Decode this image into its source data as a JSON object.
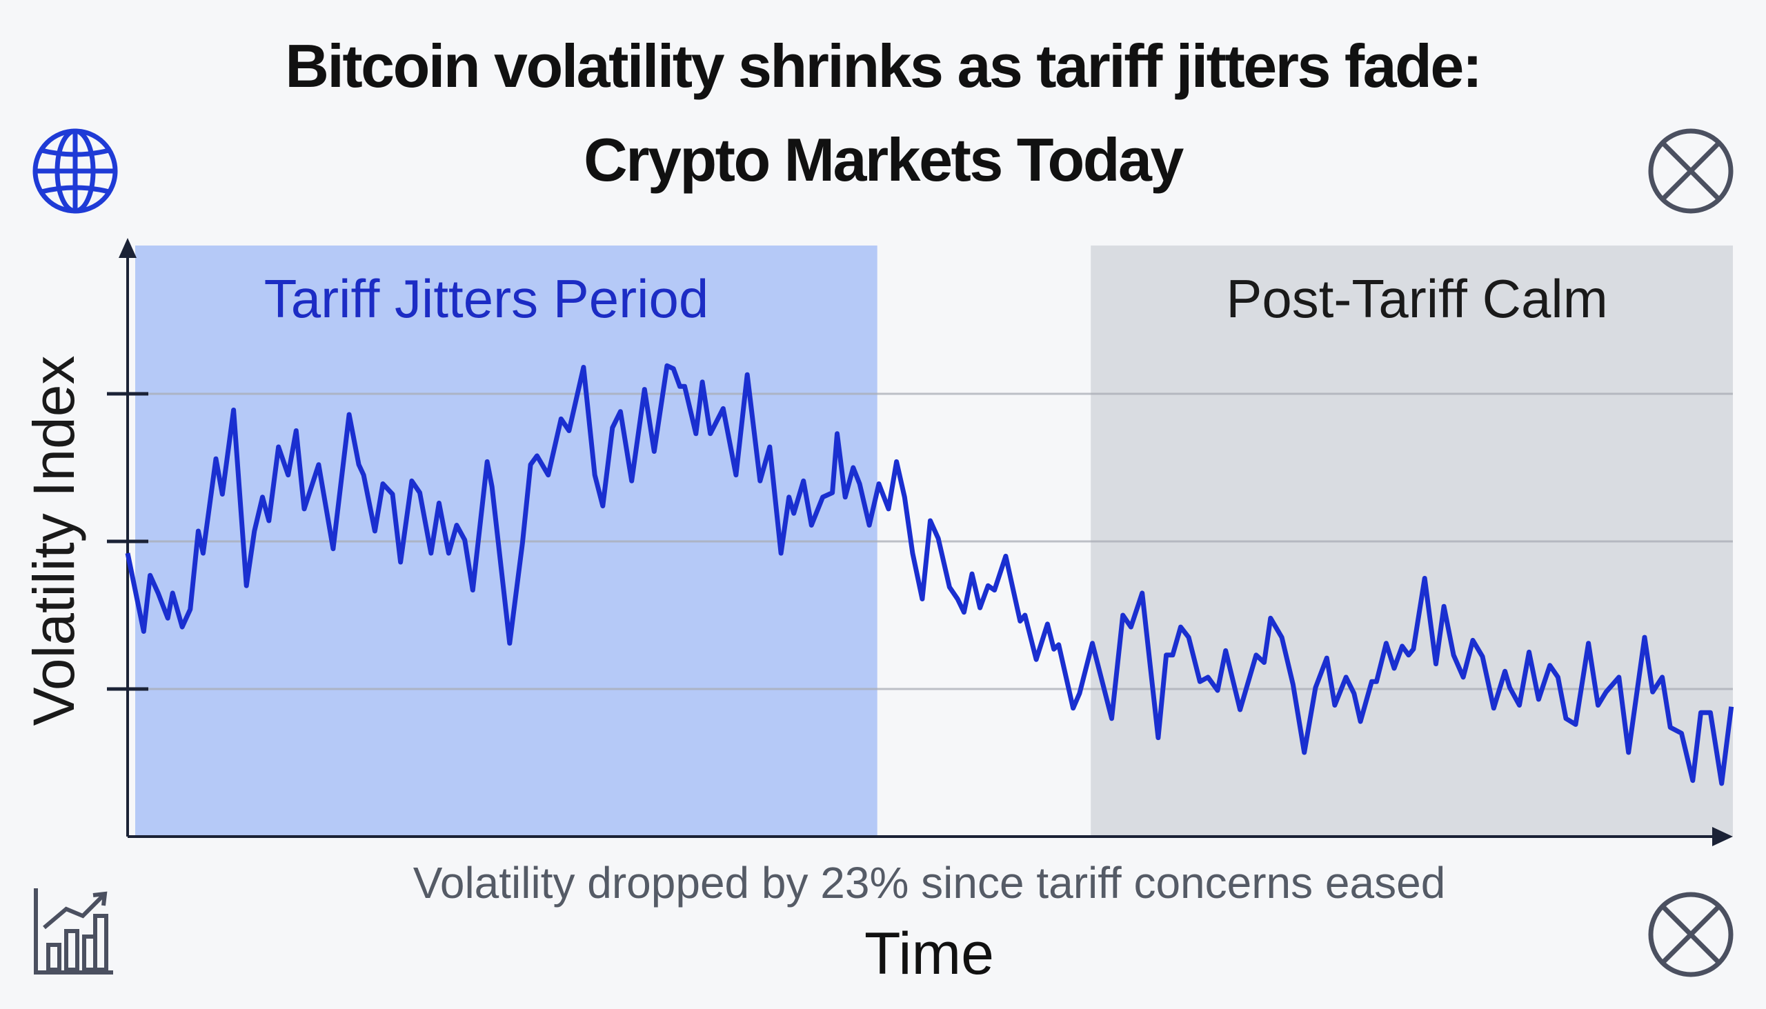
{
  "title": {
    "line1": "Bitcoin volatility shrinks as tariff jitters fade:",
    "line2": "Crypto Markets Today"
  },
  "icons": {
    "top_left": "globe-icon",
    "top_right": "close-circle-icon",
    "bottom_left": "bar-chart-trend-icon",
    "bottom_right": "close-circle-icon"
  },
  "chart_data": {
    "type": "line",
    "xlabel": "Time",
    "ylabel": "Volatility Index",
    "annotation": "Volatility dropped by 23% since tariff concerns eased",
    "grid": "horizontal",
    "xlim": [
      0,
      100
    ],
    "ylim": [
      0,
      4
    ],
    "yticks": [
      1,
      2,
      3
    ],
    "regions": [
      {
        "label": "Tariff Jitters Period",
        "x": [
          0,
          46.7
        ],
        "color": "#b5c9f7",
        "label_color": "#1c2cc4"
      },
      {
        "label": "Post-Tariff Calm",
        "x": [
          60.0,
          100
        ],
        "color": "#d9dce1",
        "label_color": "#1a1a1a"
      }
    ],
    "series": [
      {
        "color": "#1a2fd0",
        "x": [
          0,
          1.0,
          1.4,
          1.9,
          2.5,
          2.8,
          3.4,
          3.9,
          4.4,
          4.7,
          5.5,
          5.9,
          6.6,
          7.4,
          7.9,
          8.4,
          8.8,
          9.4,
          10.0,
          10.5,
          11.0,
          11.9,
          12.8,
          13.8,
          14.4,
          14.7,
          15.4,
          15.9,
          16.5,
          17.0,
          17.7,
          18.2,
          18.9,
          19.4,
          20.0,
          20.5,
          21.0,
          21.5,
          22.4,
          22.7,
          23.8,
          24.6,
          25.1,
          25.5,
          26.2,
          27.0,
          27.5,
          28.4,
          29.1,
          29.6,
          30.2,
          30.7,
          31.4,
          32.2,
          32.8,
          33.6,
          34.0,
          34.4,
          34.7,
          35.4,
          35.8,
          36.3,
          37.1,
          37.9,
          38.6,
          39.4,
          40.0,
          40.7,
          41.2,
          41.5,
          42.1,
          42.6,
          43.3,
          43.9,
          44.2,
          44.7,
          45.2,
          45.6,
          46.2,
          46.8,
          47.4,
          47.9,
          48.4,
          48.9,
          49.5,
          50.0,
          50.5,
          51.2,
          51.7,
          52.1,
          52.6,
          53.1,
          53.6,
          54.0,
          54.7,
          55.6,
          55.9,
          56.6,
          57.3,
          57.7,
          58.0,
          58.9,
          59.3,
          60.1,
          61.3,
          62.0,
          62.5,
          63.2,
          64.2,
          64.7,
          65.1,
          65.6,
          66.1,
          66.8,
          67.3,
          67.9,
          68.4,
          69.3,
          70.3,
          70.8,
          71.2,
          71.9,
          72.6,
          73.3,
          74.0,
          74.7,
          75.2,
          75.9,
          76.4,
          76.8,
          77.5,
          77.8,
          78.4,
          78.9,
          79.4,
          79.8,
          80.1,
          80.8,
          81.5,
          82.0,
          82.6,
          83.2,
          83.8,
          84.4,
          85.1,
          85.8,
          86.1,
          86.7,
          87.3,
          87.9,
          88.6,
          89.1,
          89.6,
          90.2,
          91.0,
          91.6,
          92.1,
          92.9,
          93.5,
          94.5,
          95.0,
          95.6,
          96.1,
          96.8,
          97.5,
          98.0,
          98.6,
          99.3,
          99.9
        ],
        "y": [
          1.92,
          1.39,
          1.77,
          1.65,
          1.48,
          1.65,
          1.42,
          1.54,
          2.07,
          1.92,
          2.56,
          2.32,
          2.89,
          1.7,
          2.07,
          2.3,
          2.14,
          2.64,
          2.45,
          2.75,
          2.22,
          2.52,
          1.95,
          2.86,
          2.52,
          2.45,
          2.07,
          2.39,
          2.32,
          1.86,
          2.41,
          2.33,
          1.92,
          2.26,
          1.92,
          2.11,
          2.01,
          1.67,
          2.54,
          2.37,
          1.31,
          1.99,
          2.52,
          2.58,
          2.45,
          2.83,
          2.75,
          3.18,
          2.45,
          2.24,
          2.77,
          2.88,
          2.41,
          3.03,
          2.61,
          3.19,
          3.17,
          3.05,
          3.05,
          2.73,
          3.08,
          2.73,
          2.9,
          2.45,
          3.13,
          2.41,
          2.64,
          1.92,
          2.3,
          2.19,
          2.41,
          2.11,
          2.3,
          2.33,
          2.73,
          2.3,
          2.5,
          2.39,
          2.11,
          2.39,
          2.22,
          2.54,
          2.3,
          1.92,
          1.61,
          2.14,
          2.02,
          1.69,
          1.61,
          1.52,
          1.78,
          1.55,
          1.7,
          1.67,
          1.9,
          1.46,
          1.5,
          1.2,
          1.44,
          1.27,
          1.3,
          0.87,
          0.97,
          1.31,
          0.8,
          1.5,
          1.42,
          1.65,
          0.67,
          1.23,
          1.23,
          1.42,
          1.35,
          1.05,
          1.08,
          0.99,
          1.26,
          0.86,
          1.23,
          1.18,
          1.48,
          1.35,
          1.03,
          0.57,
          1.01,
          1.21,
          0.89,
          1.08,
          0.97,
          0.78,
          1.05,
          1.05,
          1.31,
          1.14,
          1.29,
          1.23,
          1.27,
          1.75,
          1.17,
          1.56,
          1.23,
          1.08,
          1.33,
          1.22,
          0.87,
          1.12,
          1.01,
          0.89,
          1.25,
          0.93,
          1.16,
          1.08,
          0.8,
          0.76,
          1.31,
          0.89,
          0.98,
          1.08,
          0.57,
          1.35,
          0.98,
          1.08,
          0.74,
          0.7,
          0.38,
          0.84,
          0.84,
          0.36,
          0.88
        ]
      }
    ]
  }
}
